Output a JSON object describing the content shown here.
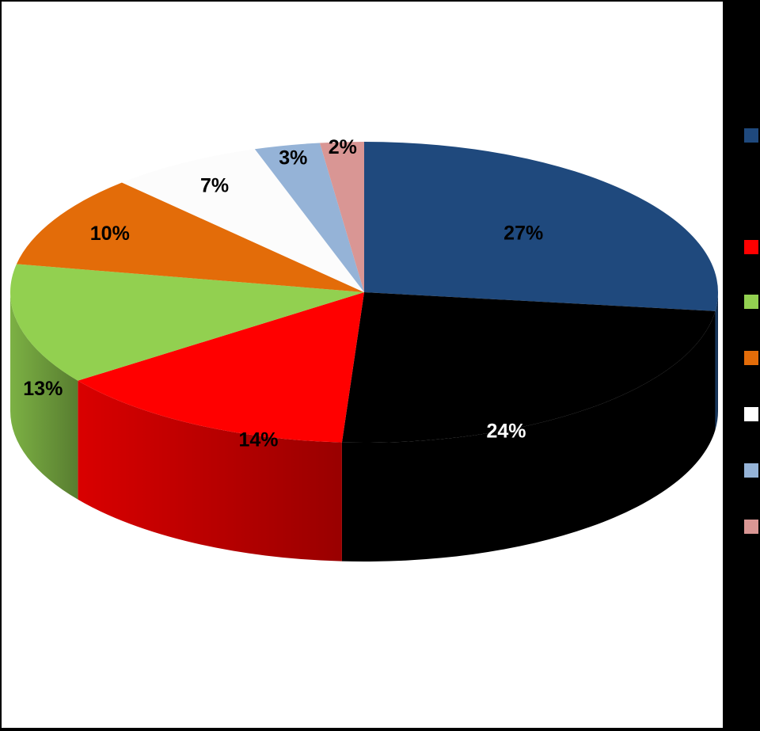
{
  "chart_data": {
    "type": "pie",
    "three_d": true,
    "values": [
      27,
      24,
      14,
      13,
      10,
      7,
      3,
      2
    ],
    "labels": [
      "27%",
      "24%",
      "14%",
      "13%",
      "10%",
      "7%",
      "3%",
      "2%"
    ],
    "colors": [
      "#1f497d",
      "#000000",
      "#ff0000",
      "#92d050",
      "#e36c09",
      "#fcfcfc",
      "#95b3d7",
      "#d99694"
    ],
    "label_colors": [
      "#000000",
      "#ffffff",
      "#000000",
      "#000000",
      "#000000",
      "#000000",
      "#000000",
      "#000000"
    ],
    "start_angle_deg": -90,
    "direction": "clockwise",
    "legend": {
      "placement": "right",
      "colors": [
        "#1f497d",
        "#ff0000",
        "#92d050",
        "#e36c09",
        "#ffffff",
        "#95b3d7",
        "#d99694"
      ]
    }
  }
}
